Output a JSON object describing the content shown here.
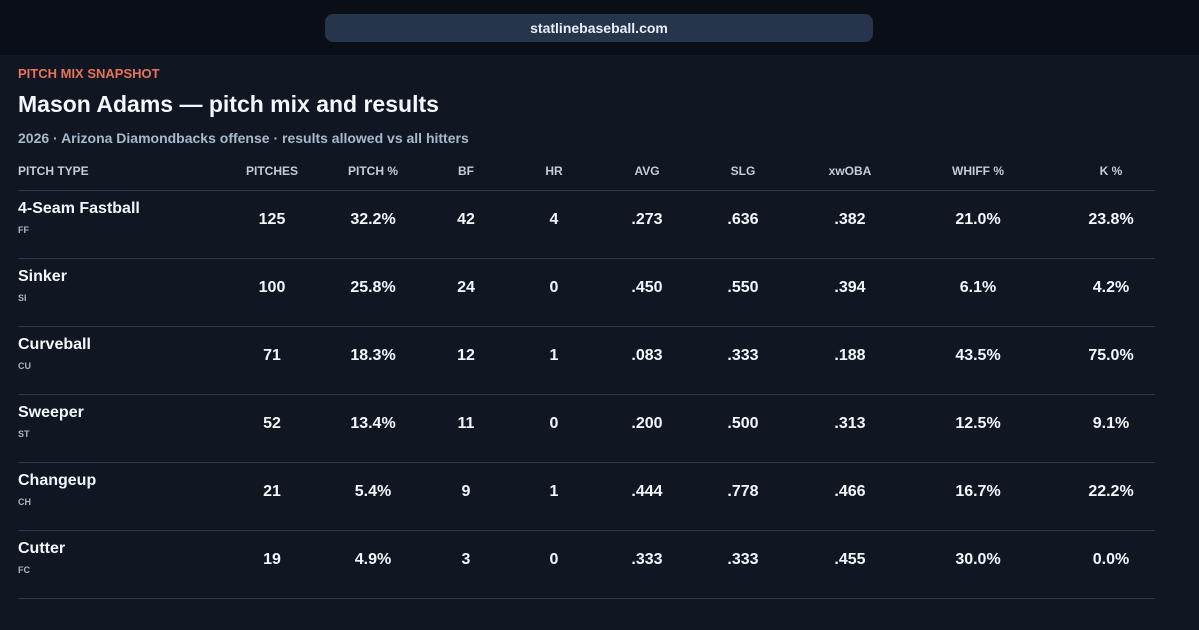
{
  "browser": {
    "url": "statlinebaseball.com"
  },
  "header": {
    "eyebrow": "PITCH MIX SNAPSHOT",
    "title": "Mason Adams — pitch mix and results",
    "subtitle": "2026 · Arizona Diamondbacks offense · results allowed vs all hitters"
  },
  "table": {
    "columns": [
      "PITCH TYPE",
      "PITCHES",
      "PITCH %",
      "BF",
      "HR",
      "AVG",
      "SLG",
      "xwOBA",
      "WHIFF %",
      "K %"
    ],
    "rows": [
      {
        "pitch": "4-Seam Fastball",
        "code": "FF",
        "cells": [
          "125",
          "32.2%",
          "42",
          "4",
          ".273",
          ".636",
          ".382",
          "21.0%",
          "23.8%"
        ]
      },
      {
        "pitch": "Sinker",
        "code": "SI",
        "cells": [
          "100",
          "25.8%",
          "24",
          "0",
          ".450",
          ".550",
          ".394",
          "6.1%",
          "4.2%"
        ]
      },
      {
        "pitch": "Curveball",
        "code": "CU",
        "cells": [
          "71",
          "18.3%",
          "12",
          "1",
          ".083",
          ".333",
          ".188",
          "43.5%",
          "75.0%"
        ]
      },
      {
        "pitch": "Sweeper",
        "code": "ST",
        "cells": [
          "52",
          "13.4%",
          "11",
          "0",
          ".200",
          ".500",
          ".313",
          "12.5%",
          "9.1%"
        ]
      },
      {
        "pitch": "Changeup",
        "code": "CH",
        "cells": [
          "21",
          "5.4%",
          "9",
          "1",
          ".444",
          ".778",
          ".466",
          "16.7%",
          "22.2%"
        ]
      },
      {
        "pitch": "Cutter",
        "code": "FC",
        "cells": [
          "19",
          "4.9%",
          "3",
          "0",
          ".333",
          ".333",
          ".455",
          "30.0%",
          "0.0%"
        ]
      }
    ]
  }
}
